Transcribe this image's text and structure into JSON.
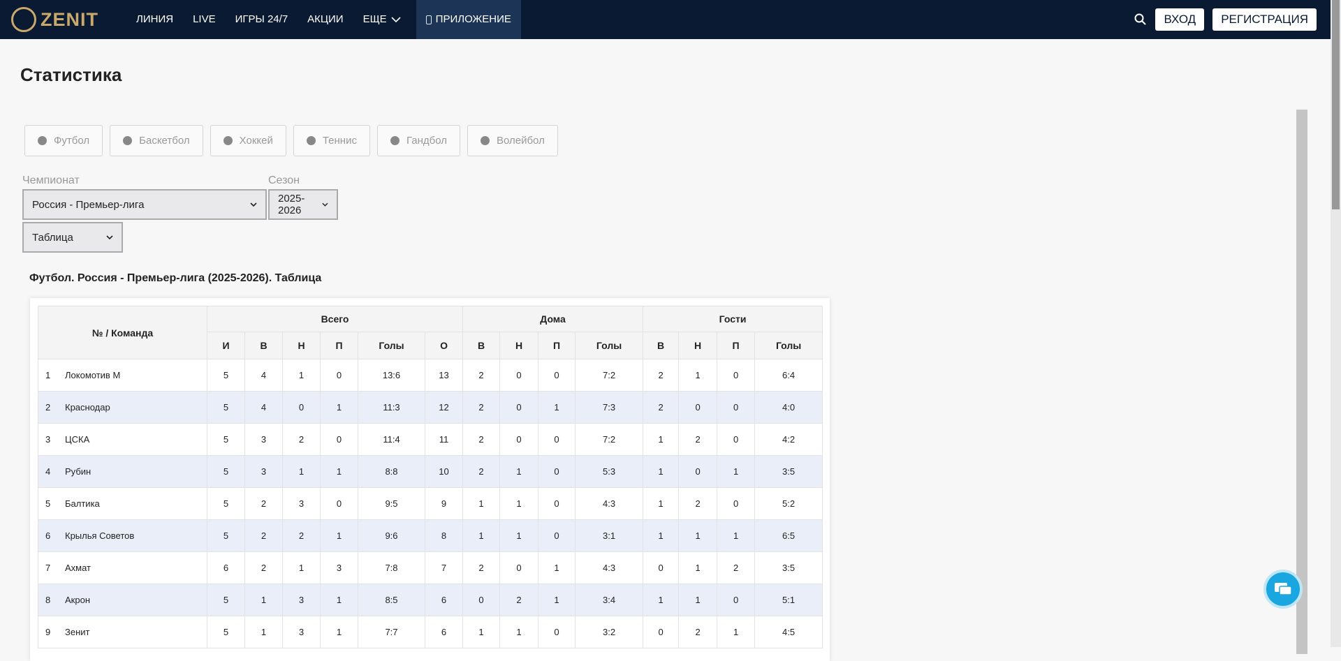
{
  "header": {
    "logo": "ZENIT",
    "nav": [
      "ЛИНИЯ",
      "LIVE",
      "ИГРЫ 24/7",
      "АКЦИИ",
      "ЕЩЕ",
      "ПРИЛОЖЕНИЕ"
    ],
    "login": "ВХОД",
    "register": "РЕГИСТРАЦИЯ"
  },
  "page": {
    "title": "Статистика",
    "sports": [
      "Футбол",
      "Баскетбол",
      "Хоккей",
      "Теннис",
      "Гандбол",
      "Волейбол"
    ],
    "filters": {
      "championship_label": "Чемпионат",
      "championship": "Россия - Премьер-лига",
      "season_label": "Сезон",
      "season": "2025-2026",
      "view": "Таблица"
    }
  },
  "table": {
    "title": "Футбол. Россия - Премьер-лига (2025-2026). Таблица",
    "team_header": "№ / Команда",
    "groups": [
      "Всего",
      "Дома",
      "Гости"
    ],
    "columns": [
      "И",
      "В",
      "Н",
      "П",
      "Голы",
      "О",
      "В",
      "Н",
      "П",
      "Голы",
      "В",
      "Н",
      "П",
      "Голы"
    ],
    "rows": [
      [
        1,
        "Локомотив М",
        5,
        4,
        1,
        0,
        "13:6",
        13,
        2,
        0,
        0,
        "7:2",
        2,
        1,
        0,
        "6:4"
      ],
      [
        2,
        "Краснодар",
        5,
        4,
        0,
        1,
        "11:3",
        12,
        2,
        0,
        1,
        "7:3",
        2,
        0,
        0,
        "4:0"
      ],
      [
        3,
        "ЦСКА",
        5,
        3,
        2,
        0,
        "11:4",
        11,
        2,
        0,
        0,
        "7:2",
        1,
        2,
        0,
        "4:2"
      ],
      [
        4,
        "Рубин",
        5,
        3,
        1,
        1,
        "8:8",
        10,
        2,
        1,
        0,
        "5:3",
        1,
        0,
        1,
        "3:5"
      ],
      [
        5,
        "Балтика",
        5,
        2,
        3,
        0,
        "9:5",
        9,
        1,
        1,
        0,
        "4:3",
        1,
        2,
        0,
        "5:2"
      ],
      [
        6,
        "Крылья Советов",
        5,
        2,
        2,
        1,
        "9:6",
        8,
        1,
        1,
        0,
        "3:1",
        1,
        1,
        1,
        "6:5"
      ],
      [
        7,
        "Ахмат",
        6,
        2,
        1,
        3,
        "7:8",
        7,
        2,
        0,
        1,
        "4:3",
        0,
        1,
        2,
        "3:5"
      ],
      [
        8,
        "Акрон",
        5,
        1,
        3,
        1,
        "8:5",
        6,
        0,
        2,
        1,
        "3:4",
        1,
        1,
        0,
        "5:1"
      ],
      [
        9,
        "Зенит",
        5,
        1,
        3,
        1,
        "7:7",
        6,
        1,
        1,
        0,
        "3:2",
        0,
        2,
        1,
        "4:5"
      ]
    ]
  }
}
